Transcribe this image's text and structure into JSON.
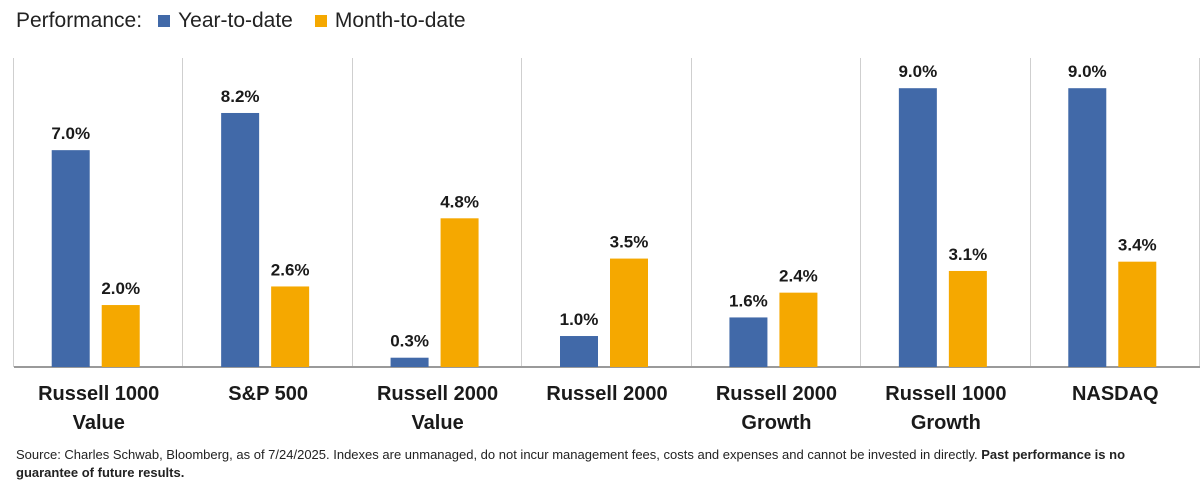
{
  "legend": {
    "title": "Performance:",
    "items": [
      {
        "label": "Year-to-date",
        "color": "#4169a8"
      },
      {
        "label": "Month-to-date",
        "color": "#f5a800"
      }
    ]
  },
  "chart_data": {
    "type": "bar",
    "categories": [
      [
        "Russell 1000",
        "Value"
      ],
      [
        "S&P 500"
      ],
      [
        "Russell 2000",
        "Value"
      ],
      [
        "Russell 2000"
      ],
      [
        "Russell 2000",
        "Growth"
      ],
      [
        "Russell 1000",
        "Growth"
      ],
      [
        "NASDAQ"
      ]
    ],
    "series": [
      {
        "name": "Year-to-date",
        "color": "#4169a8",
        "values": [
          7.0,
          8.2,
          0.3,
          1.0,
          1.6,
          9.0,
          9.0
        ],
        "labels": [
          "7.0%",
          "8.2%",
          "0.3%",
          "1.0%",
          "1.6%",
          "9.0%",
          "9.0%"
        ]
      },
      {
        "name": "Month-to-date",
        "color": "#f5a800",
        "values": [
          2.0,
          2.6,
          4.8,
          3.5,
          2.4,
          3.1,
          3.4
        ],
        "labels": [
          "2.0%",
          "2.6%",
          "4.8%",
          "3.5%",
          "2.4%",
          "3.1%",
          "3.4%"
        ]
      }
    ],
    "ylim": [
      0,
      9.2
    ],
    "grid": false,
    "legend_position": "top-left"
  },
  "footer": {
    "source_text": "Source: Charles Schwab, Bloomberg, as of 7/24/2025.  Indexes are unmanaged, do not incur management fees, costs and expenses and cannot be invested in directly. ",
    "disclaimer_bold": "Past performance is no guarantee of future results."
  }
}
